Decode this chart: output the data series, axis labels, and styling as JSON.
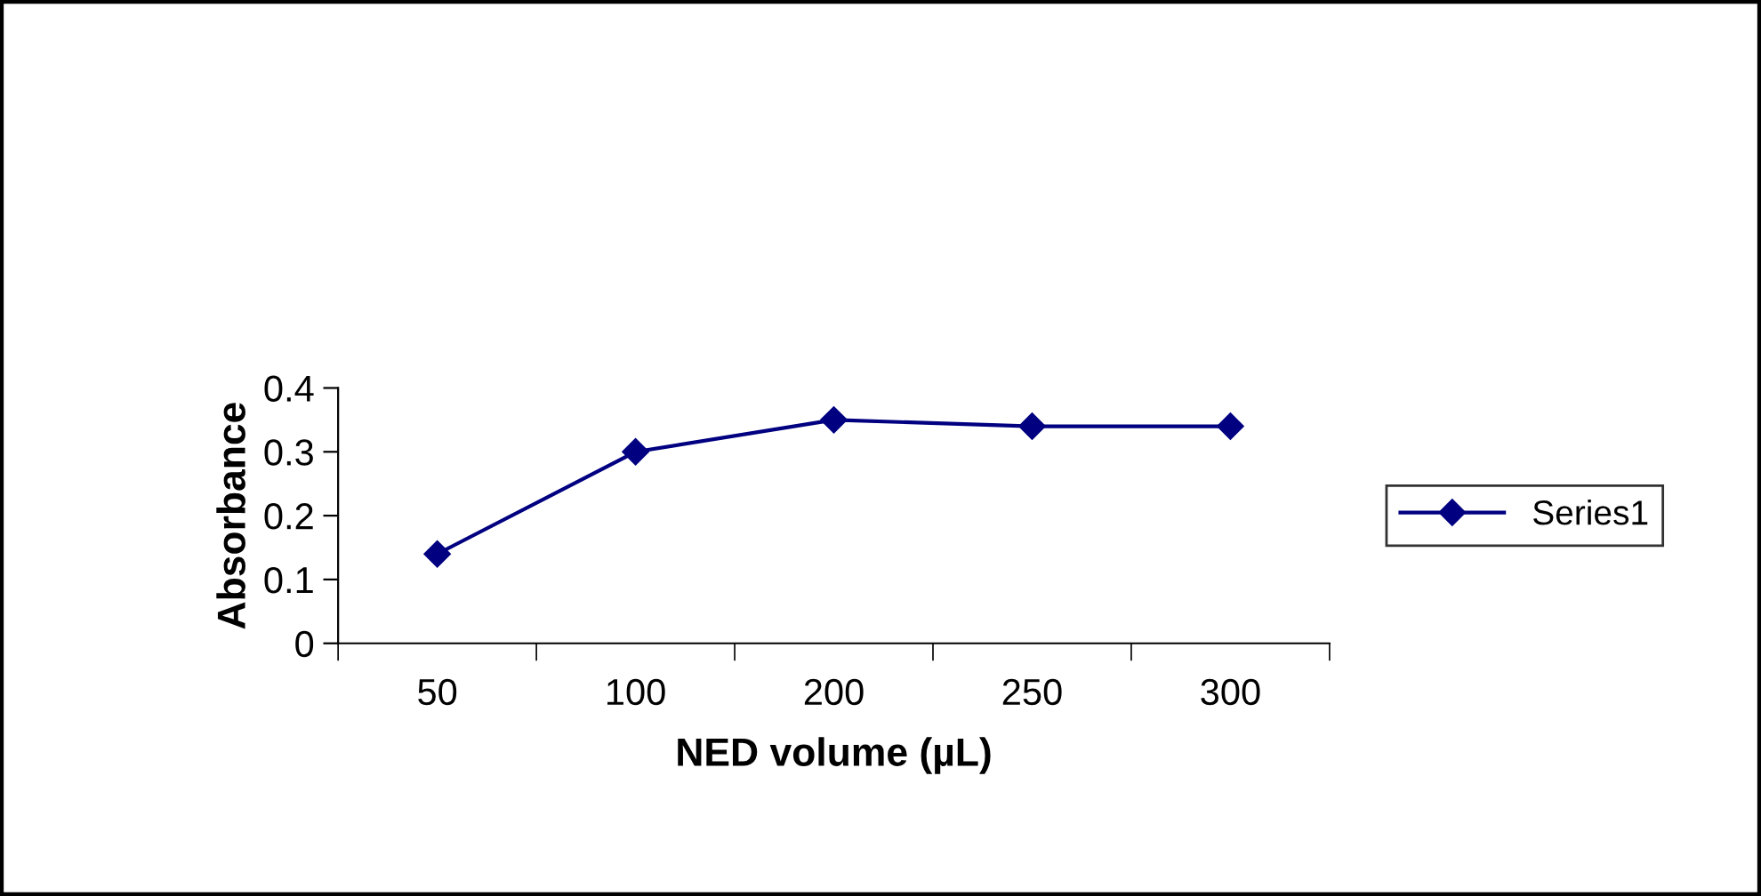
{
  "chart_data": {
    "type": "line",
    "xlabel": "NED volume (µL)",
    "ylabel": "Absorbance",
    "categories": [
      "50",
      "100",
      "200",
      "250",
      "300"
    ],
    "series": [
      {
        "name": "Series1",
        "color": "#000080",
        "values": [
          0.14,
          0.3,
          0.35,
          0.34,
          0.34
        ]
      }
    ],
    "ylim": [
      0,
      0.4
    ],
    "yticks": [
      0,
      0.1,
      0.2,
      0.3,
      0.4
    ],
    "grid": false,
    "legend": "right",
    "marker": "diamond",
    "line_style": "solid"
  }
}
